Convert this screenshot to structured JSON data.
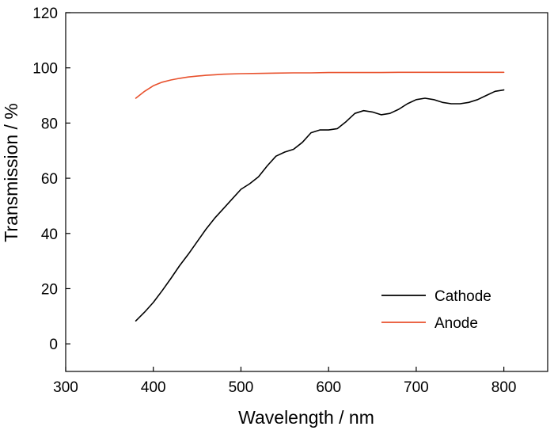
{
  "chart_data": {
    "type": "line",
    "title": "",
    "xlabel": "Wavelength / nm",
    "ylabel": "Transmission / %",
    "xlim": [
      300,
      850
    ],
    "ylim": [
      -10,
      120
    ],
    "xticks": [
      300,
      400,
      500,
      600,
      700,
      800
    ],
    "yticks": [
      0,
      20,
      40,
      60,
      80,
      100,
      120
    ],
    "grid": false,
    "legend": {
      "position": "bottom-right"
    },
    "series": [
      {
        "name": "Cathode",
        "color": "#000000",
        "x": [
          380,
          390,
          400,
          410,
          420,
          430,
          440,
          450,
          460,
          470,
          480,
          490,
          500,
          510,
          520,
          530,
          540,
          550,
          560,
          570,
          580,
          590,
          600,
          610,
          620,
          630,
          640,
          650,
          660,
          670,
          680,
          690,
          700,
          710,
          720,
          730,
          740,
          750,
          760,
          770,
          780,
          790,
          800
        ],
        "y": [
          8.3,
          11.5,
          15.0,
          19.2,
          23.7,
          28.3,
          32.5,
          37.0,
          41.5,
          45.5,
          49.0,
          52.5,
          56.0,
          58.0,
          60.5,
          64.5,
          68.0,
          69.5,
          70.5,
          73.0,
          76.5,
          77.5,
          77.5,
          78.0,
          80.5,
          83.5,
          84.5,
          84.0,
          83.0,
          83.5,
          85.0,
          87.0,
          88.5,
          89.0,
          88.5,
          87.5,
          87.0,
          87.0,
          87.5,
          88.5,
          90.0,
          91.5,
          92.0
        ]
      },
      {
        "name": "Anode",
        "color": "#e8512d",
        "x": [
          380,
          390,
          400,
          410,
          420,
          430,
          440,
          450,
          460,
          470,
          480,
          500,
          520,
          540,
          560,
          580,
          600,
          620,
          640,
          660,
          680,
          700,
          720,
          740,
          760,
          780,
          800
        ],
        "y": [
          89.0,
          91.5,
          93.5,
          94.8,
          95.6,
          96.2,
          96.7,
          97.0,
          97.3,
          97.5,
          97.7,
          97.9,
          98.0,
          98.1,
          98.2,
          98.2,
          98.3,
          98.3,
          98.3,
          98.3,
          98.4,
          98.4,
          98.4,
          98.4,
          98.4,
          98.4,
          98.4
        ]
      }
    ]
  }
}
